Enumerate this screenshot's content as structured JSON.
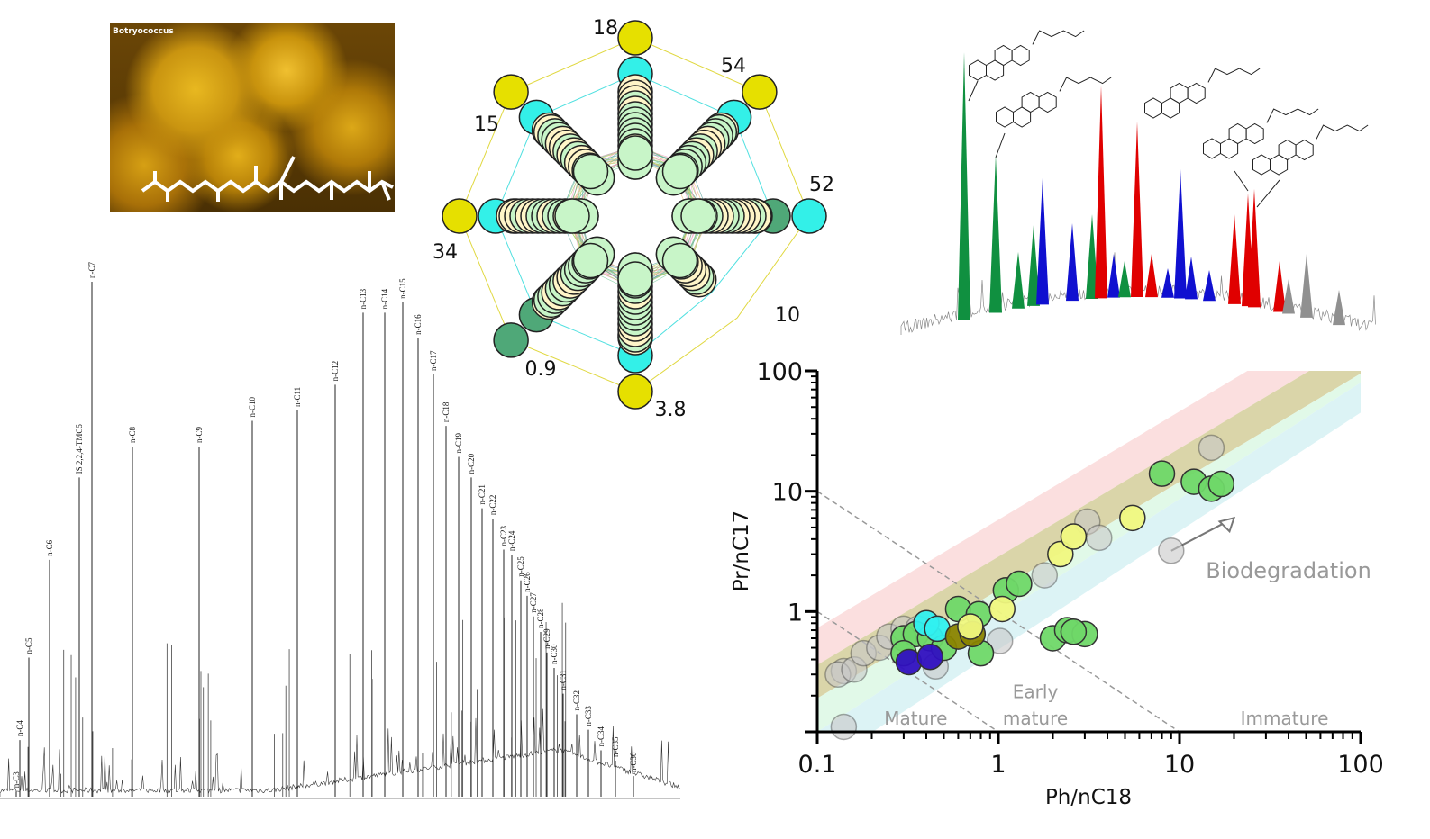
{
  "photo": {
    "label": "Botryococcus"
  },
  "chart_data": [
    {
      "type": "line",
      "description_of_type": "gas chromatogram",
      "peaks": [
        {
          "label": "n-C3",
          "intensity": 1
        },
        {
          "label": "n-C4",
          "intensity": 11
        },
        {
          "label": "n-C5",
          "intensity": 27
        },
        {
          "label": "n-C6",
          "intensity": 46
        },
        {
          "label": "IS 2,2,4-TMC5",
          "intensity": 62
        },
        {
          "label": "n-C7",
          "intensity": 100
        },
        {
          "label": "n-C8",
          "intensity": 68
        },
        {
          "label": "n-C9",
          "intensity": 68
        },
        {
          "label": "n-C10",
          "intensity": 73
        },
        {
          "label": "n-C11",
          "intensity": 75
        },
        {
          "label": "n-C12",
          "intensity": 80
        },
        {
          "label": "n-C13",
          "intensity": 94
        },
        {
          "label": "n-C14",
          "intensity": 94
        },
        {
          "label": "n-C15",
          "intensity": 96
        },
        {
          "label": "n-C16",
          "intensity": 89
        },
        {
          "label": "n-C17",
          "intensity": 82
        },
        {
          "label": "n-C18",
          "intensity": 72
        },
        {
          "label": "n-C19",
          "intensity": 66
        },
        {
          "label": "n-C20",
          "intensity": 62
        },
        {
          "label": "n-C21",
          "intensity": 56
        },
        {
          "label": "n-C22",
          "intensity": 54
        },
        {
          "label": "n-C23",
          "intensity": 48
        },
        {
          "label": "n-C24",
          "intensity": 47
        },
        {
          "label": "n-C25",
          "intensity": 42
        },
        {
          "label": "n-C26",
          "intensity": 39
        },
        {
          "label": "n-C27",
          "intensity": 35
        },
        {
          "label": "n-C28",
          "intensity": 32
        },
        {
          "label": "n-C29",
          "intensity": 28
        },
        {
          "label": "n-C30",
          "intensity": 25
        },
        {
          "label": "n-C31",
          "intensity": 20
        },
        {
          "label": "n-C32",
          "intensity": 16
        },
        {
          "label": "n-C33",
          "intensity": 13
        },
        {
          "label": "n-C34",
          "intensity": 9
        },
        {
          "label": "n-C35",
          "intensity": 7
        },
        {
          "label": "n-C36",
          "intensity": 4
        }
      ]
    },
    {
      "type": "radar",
      "axis_max_labels": [
        "18",
        "54",
        "52",
        "10",
        "3.8",
        "0.9",
        "34",
        "15"
      ],
      "colors": [
        "#e6e000",
        "#33f0e8",
        "#c8f5c8",
        "#fff5c8",
        "#4fa878",
        "#7aaef0",
        "#f5c0e0"
      ]
    },
    {
      "type": "area",
      "description_of_type": "biomarker chromatogram",
      "colors": {
        "green": "#109040",
        "blue": "#1010d0",
        "red": "#e00000",
        "gray": "#909090"
      }
    },
    {
      "type": "scatter",
      "xlabel": "Ph/nC18",
      "ylabel": "Pr/nC17",
      "xscale": "log",
      "yscale": "log",
      "xlim": [
        0.1,
        100
      ],
      "ylim": [
        0.1,
        100
      ],
      "xticks": [
        "0.1",
        "1",
        "10",
        "100"
      ],
      "yticks": [
        "1",
        "10",
        "100"
      ],
      "bands": [
        {
          "color": "#fbdcdc",
          "lower_at_0.1": 0.36,
          "upper_at_0.1": 0.73,
          "lower_at_100": 180,
          "upper_at_100": 365
        },
        {
          "color": "#d6d0a0",
          "lower_at_0.1": 0.19,
          "upper_at_0.1": 0.36,
          "lower_at_100": 95,
          "upper_at_100": 180
        },
        {
          "color": "#def8e6",
          "lower_at_0.1": 0.1,
          "upper_at_0.1": 0.19,
          "lower_at_100": 80,
          "upper_at_100": 95
        },
        {
          "color": "#d8f2f4",
          "lower_at_0.1": 0.05,
          "upper_at_0.1": 0.1,
          "lower_at_100": 45,
          "upper_at_100": 80
        }
      ],
      "dashed_lines": [
        [
          [
            0.1,
            10
          ],
          [
            10,
            0.1
          ]
        ],
        [
          [
            0.1,
            1
          ],
          [
            1,
            0.1
          ]
        ]
      ],
      "annotations": [
        {
          "text": "Mature",
          "x": 0.35,
          "y": 0.115
        },
        {
          "text": "Early",
          "x": 1.6,
          "y": 0.19
        },
        {
          "text": "mature",
          "x": 1.6,
          "y": 0.115
        },
        {
          "text": "Immature",
          "x": 38,
          "y": 0.115
        },
        {
          "text": "Biodegradation",
          "x": 40,
          "y": 1.9
        }
      ],
      "arrow": {
        "from": [
          9,
          3.2
        ],
        "to": [
          20,
          6
        ]
      },
      "series": [
        {
          "color": "#c8c8c8",
          "points": [
            [
              0.14,
              0.32
            ],
            [
              0.13,
              0.3
            ],
            [
              0.16,
              0.33
            ],
            [
              0.18,
              0.45
            ],
            [
              0.22,
              0.5
            ],
            [
              0.25,
              0.62
            ],
            [
              0.3,
              0.72
            ],
            [
              0.36,
              0.72
            ],
            [
              0.45,
              0.35
            ],
            [
              0.14,
              0.11
            ],
            [
              1.02,
              0.57
            ],
            [
              1.8,
              2.0
            ],
            [
              3.1,
              5.6
            ],
            [
              3.6,
              4.1
            ],
            [
              9,
              3.2
            ],
            [
              15,
              23
            ]
          ]
        },
        {
          "color": "#6fd868",
          "points": [
            [
              0.3,
              0.6
            ],
            [
              0.35,
              0.65
            ],
            [
              0.42,
              0.6
            ],
            [
              0.5,
              0.5
            ],
            [
              0.8,
              0.45
            ],
            [
              0.6,
              1.05
            ],
            [
              0.78,
              0.95
            ],
            [
              1.1,
              1.5
            ],
            [
              1.3,
              1.7
            ],
            [
              2,
              0.6
            ],
            [
              2.4,
              0.7
            ],
            [
              3,
              0.65
            ],
            [
              2.6,
              0.68
            ],
            [
              8,
              14
            ],
            [
              12,
              12
            ],
            [
              15,
              10.5
            ],
            [
              17,
              11.5
            ],
            [
              0.3,
              0.45
            ]
          ]
        },
        {
          "color": "#3010c0",
          "points": [
            [
              0.32,
              0.38
            ],
            [
              0.42,
              0.42
            ]
          ]
        },
        {
          "color": "#30f0f0",
          "points": [
            [
              0.4,
              0.8
            ],
            [
              0.46,
              0.72
            ]
          ]
        },
        {
          "color": "#8a8400",
          "points": [
            [
              0.6,
              0.62
            ],
            [
              0.72,
              0.65
            ]
          ]
        },
        {
          "color": "#f0f880",
          "points": [
            [
              2.2,
              3
            ],
            [
              2.6,
              4.2
            ],
            [
              5.5,
              6
            ],
            [
              0.7,
              0.75
            ],
            [
              1.05,
              1.05
            ]
          ]
        }
      ]
    }
  ]
}
